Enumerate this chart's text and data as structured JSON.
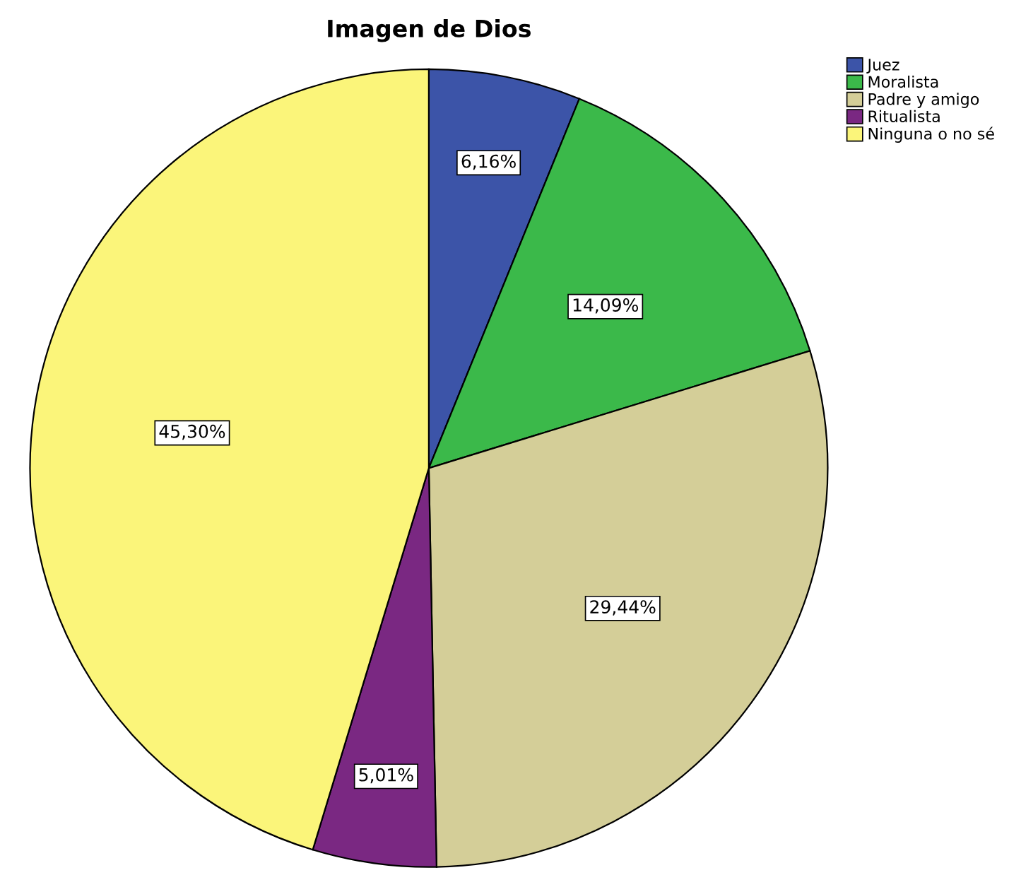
{
  "chart_data": {
    "type": "pie",
    "title": "Imagen de Dios",
    "categories": [
      "Juez",
      "Moralista",
      "Padre y amigo",
      "Ritualista",
      "Ninguna o no sé"
    ],
    "values": [
      6.16,
      14.09,
      29.44,
      5.01,
      45.3
    ],
    "value_labels": [
      "6,16%",
      "14,09%",
      "29,44%",
      "5,01%",
      "45,30%"
    ],
    "colors": [
      "#3c54a8",
      "#3bb94a",
      "#d4ce98",
      "#7a2882",
      "#fbf57a"
    ],
    "legend": "top right"
  }
}
